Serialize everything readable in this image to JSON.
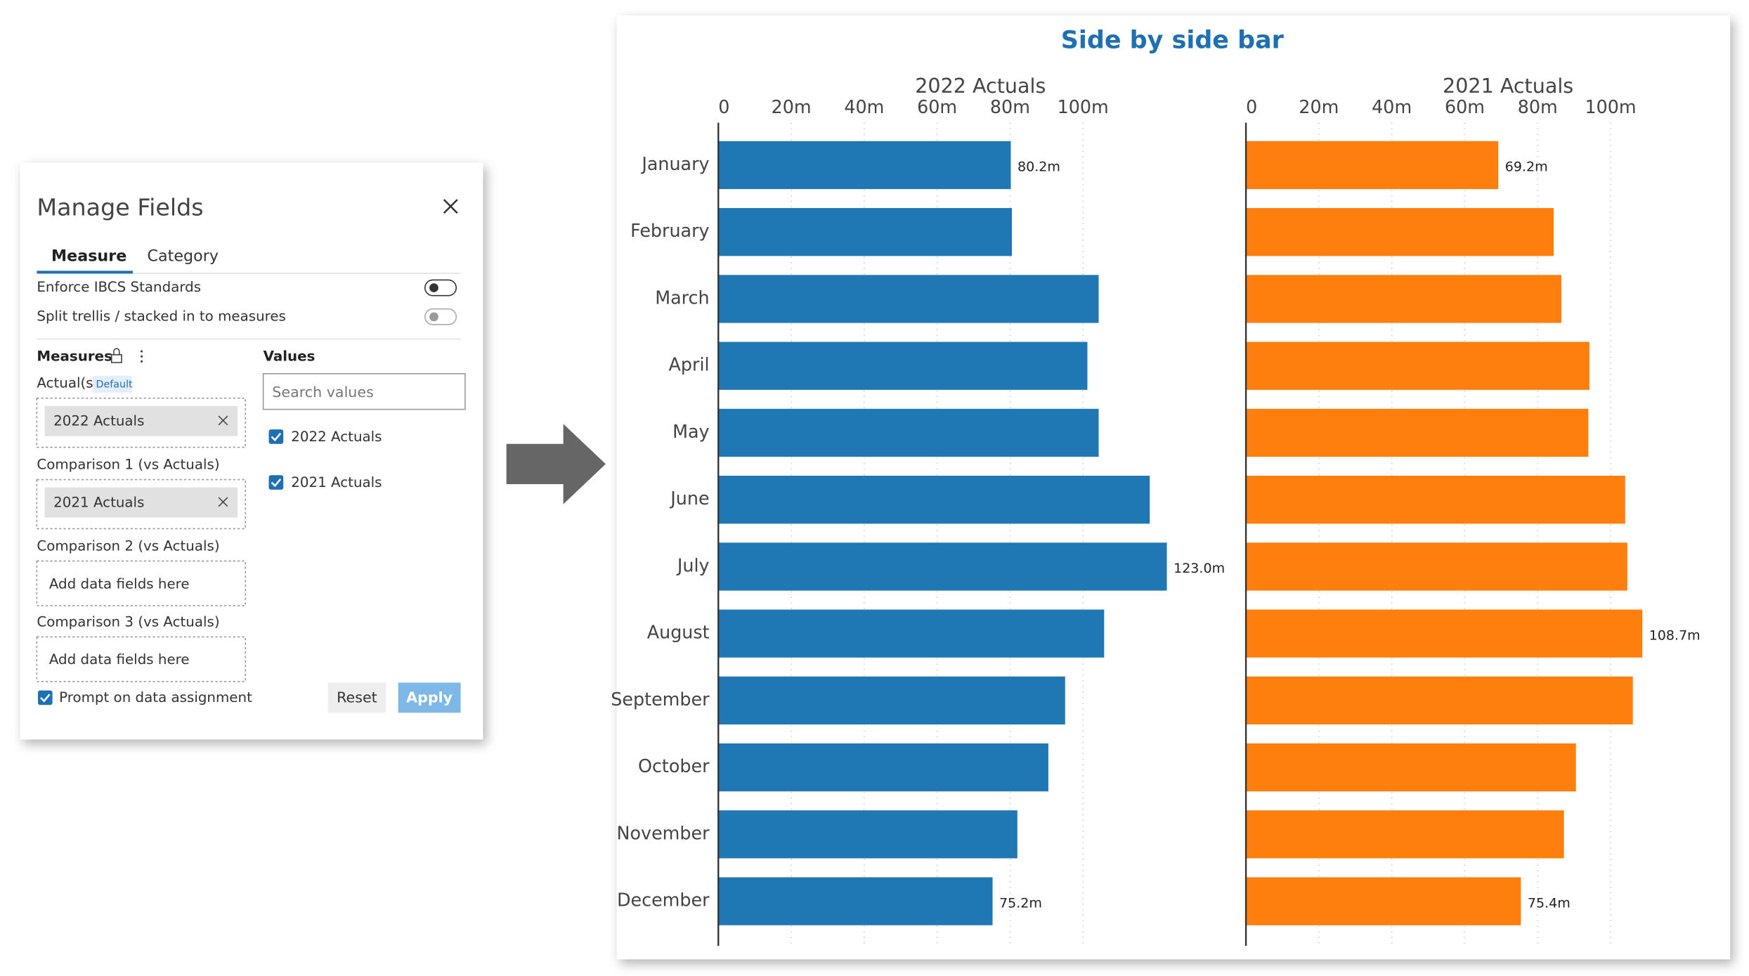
{
  "manage_fields": {
    "title": "Manage Fields",
    "tabs": [
      "Measure",
      "Category"
    ],
    "toggles": [
      "Enforce IBCS Standards",
      "Split trellis / stacked in to measures"
    ],
    "measures_label": "Measures",
    "values_label": "Values",
    "search_placeholder": "Search values",
    "value_options": [
      "2022 Actuals",
      "2021 Actuals"
    ],
    "slots": [
      {
        "label": "Actual(s)",
        "badge": "Default",
        "field": "2022 Actuals"
      },
      {
        "label": "Comparison 1 (vs Actuals)",
        "field": "2021 Actuals"
      },
      {
        "label": "Comparison 2 (vs Actuals)",
        "placeholder": "Add data fields here"
      },
      {
        "label": "Comparison 3 (vs Actuals)",
        "placeholder": "Add data fields here"
      }
    ],
    "prompt": "Prompt on data assignment",
    "buttons": [
      "Reset",
      "Apply"
    ]
  },
  "visual_title": "Side by side bar",
  "chart_data": [
    {
      "type": "bar",
      "orientation": "horizontal",
      "title": "2022 Actuals",
      "color": "#1f77b4",
      "categories": [
        "January",
        "February",
        "March",
        "April",
        "May",
        "June",
        "July",
        "August",
        "September",
        "October",
        "November",
        "December"
      ],
      "values": [
        80.2,
        80.5,
        104.3,
        101.2,
        104.3,
        118.3,
        123.0,
        105.8,
        95.1,
        90.5,
        82.0,
        75.2
      ],
      "value_labels": [
        "80.2m",
        null,
        null,
        null,
        null,
        null,
        "123.0m",
        null,
        null,
        null,
        null,
        "75.2m"
      ],
      "xlim": [
        0,
        130
      ],
      "xticks": [
        0,
        {
          "value": 20,
          "label": "20m"
        },
        {
          "value": 40,
          "label": "40m"
        },
        {
          "value": 60,
          "label": "60m"
        },
        {
          "value": 80,
          "label": "80m"
        },
        {
          "value": 100,
          "label": "100m"
        }
      ],
      "grid": true
    },
    {
      "type": "bar",
      "orientation": "horizontal",
      "title": "2021 Actuals",
      "color": "#ff7f0e",
      "values": [
        69.2,
        84.4,
        86.5,
        94.2,
        93.9,
        104.0,
        104.6,
        108.7,
        106.1,
        90.5,
        87.2,
        75.4
      ],
      "value_labels": [
        "69.2m",
        null,
        null,
        null,
        null,
        null,
        null,
        "108.7m",
        null,
        null,
        null,
        "75.4m"
      ],
      "xlim": [
        0,
        130
      ],
      "xticks": [
        0,
        {
          "value": 20,
          "label": "20m"
        },
        {
          "value": 40,
          "label": "40m"
        },
        {
          "value": 60,
          "label": "60m"
        },
        {
          "value": 80,
          "label": "80m"
        },
        {
          "value": 100,
          "label": "100m"
        }
      ],
      "grid": true
    }
  ]
}
